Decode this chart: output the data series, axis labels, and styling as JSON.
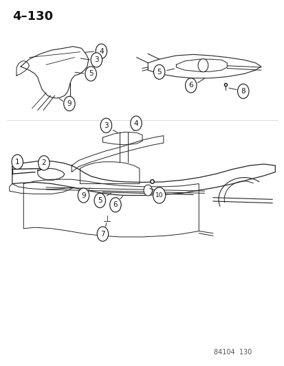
{
  "title": "4–130",
  "footer": "84104  130",
  "background_color": "#ffffff",
  "line_color": "#222222",
  "text_color": "#111111",
  "circle_color": "#ffffff",
  "circle_edge_color": "#111111",
  "fig_width": 4.14,
  "fig_height": 5.33,
  "dpi": 100
}
